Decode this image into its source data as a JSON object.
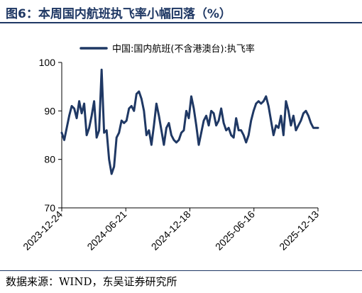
{
  "header": {
    "title": "图6：本周国内航班执飞率小幅回落（%）"
  },
  "footer": {
    "source": "数据来源：WIND，东吴证券研究所"
  },
  "colors": {
    "series": "#1f3864",
    "axis": "#000000",
    "title": "#1f3864"
  },
  "chart_data": {
    "type": "line",
    "title": "",
    "xlabel": "",
    "ylabel": "",
    "ylim": [
      70,
      100
    ],
    "yticks": [
      70,
      80,
      90,
      100
    ],
    "xlim": [
      "2023-12-24",
      "2025-12-13"
    ],
    "xticks": [
      "2023-12-24",
      "2024-06-21",
      "2024-12-18",
      "2025-06-16",
      "2025-12-13"
    ],
    "legend_position": "top",
    "grid": false,
    "series": [
      {
        "name": "中国:国内航班(不含港澳台):执飞率",
        "x": [
          "2023-12-24",
          "2023-12-31",
          "2024-01-07",
          "2024-01-14",
          "2024-01-21",
          "2024-01-28",
          "2024-02-04",
          "2024-02-11",
          "2024-02-18",
          "2024-02-25",
          "2024-03-03",
          "2024-03-10",
          "2024-03-17",
          "2024-03-24",
          "2024-03-31",
          "2024-04-07",
          "2024-04-14",
          "2024-04-21",
          "2024-04-28",
          "2024-05-05",
          "2024-05-12",
          "2024-05-19",
          "2024-05-26",
          "2024-06-02",
          "2024-06-09",
          "2024-06-16",
          "2024-06-23",
          "2024-06-30",
          "2024-07-07",
          "2024-07-14",
          "2024-07-21",
          "2024-07-28",
          "2024-08-04",
          "2024-08-11",
          "2024-08-18",
          "2024-08-25",
          "2024-09-01",
          "2024-09-08",
          "2024-09-15",
          "2024-09-22",
          "2024-09-29",
          "2024-10-06",
          "2024-10-13",
          "2024-10-20",
          "2024-10-27",
          "2024-11-03",
          "2024-11-10",
          "2024-11-17",
          "2024-11-24",
          "2024-12-01",
          "2024-12-08",
          "2024-12-15",
          "2024-12-22",
          "2024-12-29",
          "2025-01-05",
          "2025-01-12",
          "2025-01-19",
          "2025-01-26",
          "2025-02-02",
          "2025-02-09",
          "2025-02-16",
          "2025-02-23",
          "2025-03-02",
          "2025-03-09",
          "2025-03-16",
          "2025-03-23",
          "2025-03-30",
          "2025-04-06",
          "2025-04-13",
          "2025-04-20",
          "2025-04-27",
          "2025-05-04",
          "2025-05-11",
          "2025-05-18",
          "2025-05-25",
          "2025-06-01",
          "2025-06-08",
          "2025-06-15",
          "2025-06-22",
          "2025-06-29",
          "2025-07-06",
          "2025-07-13",
          "2025-07-20",
          "2025-07-27",
          "2025-08-03",
          "2025-08-10",
          "2025-08-17",
          "2025-08-24",
          "2025-08-31",
          "2025-09-07",
          "2025-09-14",
          "2025-09-21",
          "2025-09-28",
          "2025-10-05",
          "2025-10-12",
          "2025-10-19",
          "2025-10-26",
          "2025-11-02",
          "2025-11-09",
          "2025-11-16",
          "2025-11-23",
          "2025-11-30",
          "2025-12-07",
          "2025-12-13"
        ],
        "values": [
          85.5,
          84.0,
          86.5,
          89.0,
          91.0,
          90.5,
          88.5,
          92.0,
          89.5,
          91.5,
          85.0,
          86.5,
          89.0,
          92.0,
          84.5,
          86.0,
          98.5,
          85.5,
          86.0,
          80.0,
          77.0,
          78.5,
          84.5,
          85.5,
          88.0,
          87.5,
          88.0,
          90.5,
          91.0,
          90.0,
          93.5,
          94.0,
          92.5,
          90.0,
          85.0,
          86.0,
          83.0,
          87.0,
          91.5,
          89.0,
          86.0,
          83.0,
          86.5,
          87.5,
          85.0,
          84.0,
          83.5,
          84.0,
          85.5,
          86.0,
          90.0,
          88.5,
          93.0,
          90.5,
          87.0,
          83.0,
          85.5,
          88.0,
          89.0,
          87.0,
          90.0,
          89.5,
          87.0,
          88.0,
          90.5,
          87.5,
          86.0,
          86.5,
          85.0,
          84.5,
          88.5,
          86.0,
          86.0,
          85.0,
          83.5,
          85.0,
          88.0,
          90.0,
          91.5,
          92.0,
          91.5,
          92.0,
          93.0,
          91.0,
          88.0,
          85.0,
          87.0,
          86.5,
          89.0,
          85.0,
          92.0,
          90.0,
          87.0,
          89.0,
          86.0,
          87.0,
          88.0,
          89.5,
          90.0,
          89.0,
          87.5,
          86.5,
          86.5,
          86.5
        ]
      }
    ]
  }
}
